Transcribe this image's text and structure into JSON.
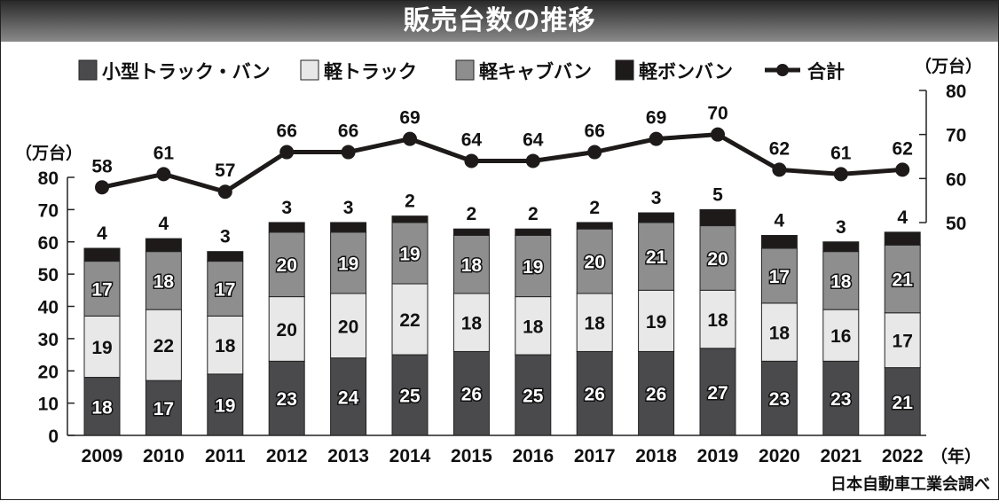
{
  "chart_data": {
    "type": "bar",
    "title": "販売台数の推移",
    "categories": [
      "2009",
      "2010",
      "2011",
      "2012",
      "2013",
      "2014",
      "2015",
      "2016",
      "2017",
      "2018",
      "2019",
      "2020",
      "2021",
      "2022"
    ],
    "x_unit": "（年）",
    "y_left": {
      "unit": "（万台）",
      "ylim": [
        0,
        80
      ],
      "ticks": [
        0,
        10,
        20,
        30,
        40,
        50,
        60,
        70,
        80
      ]
    },
    "y_right": {
      "unit": "（万台）",
      "ylim": [
        50,
        80
      ],
      "ticks": [
        50,
        60,
        70,
        80
      ]
    },
    "stacked": true,
    "series": [
      {
        "name": "小型トラック・バン",
        "color": "#4a4a4c",
        "values": [
          18,
          17,
          19,
          23,
          24,
          25,
          26,
          25,
          26,
          26,
          27,
          23,
          23,
          21
        ]
      },
      {
        "name": "軽トラック",
        "color": "#e8e8e8",
        "values": [
          19,
          22,
          18,
          20,
          20,
          22,
          18,
          18,
          18,
          19,
          18,
          18,
          16,
          17
        ]
      },
      {
        "name": "軽キャブバン",
        "color": "#8e8e8e",
        "values": [
          17,
          18,
          17,
          20,
          19,
          19,
          18,
          19,
          20,
          21,
          20,
          17,
          18,
          21
        ]
      },
      {
        "name": "軽ボンバン",
        "color": "#1e1a1a",
        "values": [
          4,
          4,
          3,
          3,
          3,
          2,
          2,
          2,
          2,
          3,
          5,
          4,
          3,
          4
        ]
      }
    ],
    "line": {
      "name": "合計",
      "axis": "right",
      "color": "#1e1a1a",
      "values": [
        58,
        61,
        57,
        66,
        66,
        69,
        64,
        64,
        66,
        69,
        70,
        62,
        61,
        62
      ]
    },
    "legend": "top",
    "grid": false,
    "source": "日本自動車工業会調べ"
  }
}
